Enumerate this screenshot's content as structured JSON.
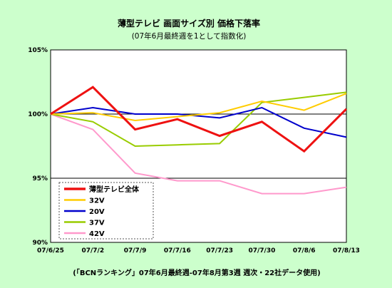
{
  "chart_data": {
    "type": "line",
    "title": "薄型テレビ 画面サイズ別 価格下落率",
    "subtitle": "(07年6月最終週を1として指数化)",
    "footnote": "(「BCNランキング」07年6月最終週-07年8月第3週 週次・22社データ使用)",
    "categories": [
      "07/6/25",
      "07/7/2",
      "07/7/9",
      "07/7/16",
      "07/7/23",
      "07/7/30",
      "07/8/6",
      "07/8/13"
    ],
    "ylim": [
      90,
      105
    ],
    "y_ticks": [
      {
        "value": 105,
        "label": "105%"
      },
      {
        "value": 100,
        "label": "100%"
      },
      {
        "value": 95,
        "label": "95%"
      },
      {
        "value": 90,
        "label": "90%"
      }
    ],
    "reference_lines": [
      100,
      95
    ],
    "legend_position": "bottom-left",
    "series": [
      {
        "name": "薄型テレビ全体",
        "color": "#ee1111",
        "width": 3,
        "values": [
          100,
          102.1,
          98.8,
          99.6,
          98.3,
          99.4,
          97.1,
          100.4
        ]
      },
      {
        "name": "32V",
        "color": "#ffcc00",
        "width": 2,
        "values": [
          100,
          100.1,
          99.5,
          99.8,
          100.1,
          101.0,
          100.3,
          101.6
        ]
      },
      {
        "name": "20V",
        "color": "#0000cc",
        "width": 2,
        "values": [
          100,
          100.5,
          100.0,
          100.0,
          99.7,
          100.5,
          98.9,
          98.2
        ]
      },
      {
        "name": "37V",
        "color": "#99cc00",
        "width": 2,
        "values": [
          100,
          99.4,
          97.5,
          97.6,
          97.7,
          100.9,
          101.3,
          101.7
        ]
      },
      {
        "name": "42V",
        "color": "#ff99cc",
        "width": 2,
        "values": [
          100,
          98.8,
          95.4,
          94.8,
          94.8,
          93.8,
          93.8,
          94.3
        ]
      }
    ]
  }
}
